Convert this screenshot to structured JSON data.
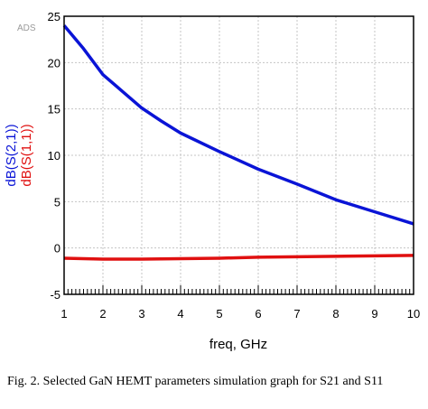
{
  "watermark": "ADS",
  "caption": "Fig. 2. Selected GaN HEMT parameters simulation graph for S21 and S11",
  "chart_data": {
    "type": "line",
    "title": "",
    "xlabel": "freq, GHz",
    "ylabel_series": [
      "dB(S(2,1))",
      "dB(S(1,1))"
    ],
    "xlim": [
      1,
      10
    ],
    "ylim": [
      -5,
      25
    ],
    "x_ticks": [
      1,
      2,
      3,
      4,
      5,
      6,
      7,
      8,
      9,
      10
    ],
    "y_ticks": [
      -5,
      0,
      5,
      10,
      15,
      20,
      25
    ],
    "grid": true,
    "legend": "none",
    "series": [
      {
        "name": "dB(S(2,1))",
        "color": "#0a14d6",
        "x": [
          1,
          1.5,
          2,
          2.5,
          3,
          3.5,
          4,
          5,
          6,
          7,
          8,
          9,
          10
        ],
        "y": [
          24.0,
          21.5,
          18.7,
          16.9,
          15.1,
          13.7,
          12.4,
          10.4,
          8.5,
          6.9,
          5.2,
          3.9,
          2.6
        ]
      },
      {
        "name": "dB(S(1,1))",
        "color": "#e01010",
        "x": [
          1,
          2,
          3,
          4,
          5,
          6,
          7,
          8,
          9,
          10
        ],
        "y": [
          -1.1,
          -1.2,
          -1.2,
          -1.15,
          -1.1,
          -1.0,
          -0.95,
          -0.9,
          -0.85,
          -0.8
        ]
      }
    ]
  }
}
